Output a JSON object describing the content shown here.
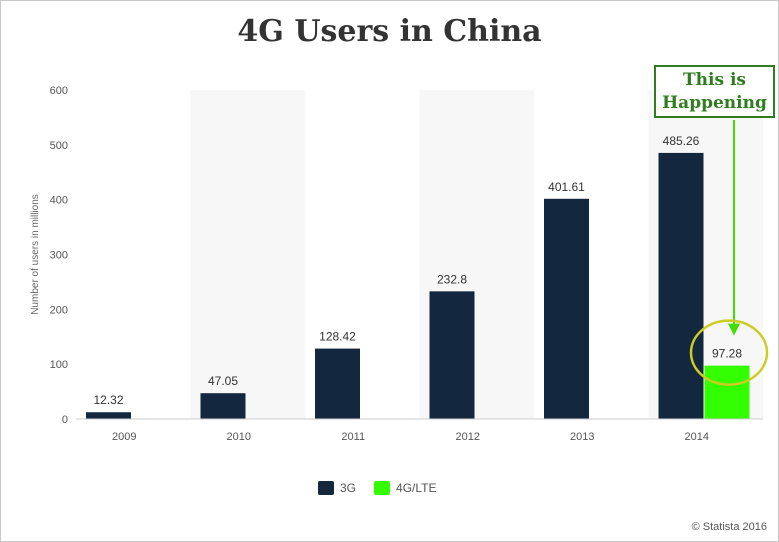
{
  "chart_data": {
    "type": "bar",
    "title": "4G Users in China",
    "xlabel": "",
    "ylabel": "Number of users in millions",
    "categories": [
      "2009",
      "2010",
      "2011",
      "2012",
      "2013",
      "2014"
    ],
    "series": [
      {
        "name": "3G",
        "color": "#13273f",
        "values": [
          12.32,
          47.05,
          128.42,
          232.8,
          401.61,
          485.26
        ]
      },
      {
        "name": "4G/LTE",
        "color": "#33ff00",
        "values": [
          null,
          null,
          null,
          null,
          null,
          97.28
        ]
      }
    ],
    "ylim": [
      0,
      600
    ],
    "yticks": [
      0,
      100,
      200,
      300,
      400,
      500,
      600
    ],
    "data_labels": true,
    "grid": false,
    "alternating_column_bands": true,
    "legend_position": "bottom-center",
    "annotation": {
      "lines": [
        "This is",
        "Happening"
      ],
      "points_to": "4G/LTE 2014",
      "text_color": "#2f7d1f",
      "arrow_color": "#44dd00",
      "highlight_circle_color": "#cccc22"
    }
  },
  "credit": "© Statista 2016"
}
